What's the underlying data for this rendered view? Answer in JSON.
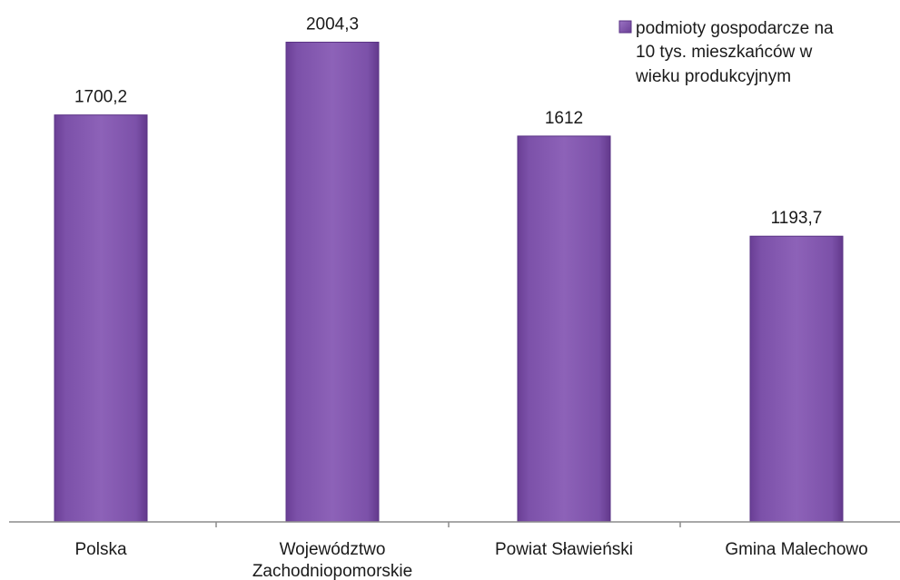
{
  "chart_data": {
    "type": "bar",
    "categories": [
      [
        "Polska"
      ],
      [
        "Województwo",
        "Zachodniopomorskie"
      ],
      [
        "Powiat Sławieński"
      ],
      [
        "Gmina Malechowo"
      ]
    ],
    "series": [
      {
        "name": "podmioty gospodarcze na 10 tys. mieszkańców w wieku produkcyjnym",
        "values": [
          1700.2,
          2004.3,
          1612,
          1193.7
        ],
        "value_labels": [
          "1700,2",
          "2004,3",
          "1612",
          "1193,7"
        ],
        "color": "#8a5fb4"
      }
    ],
    "legend": {
      "position": "top-right",
      "lines": [
        "podmioty gospodarcze na",
        "10 tys. mieszkańców w",
        "wieku produkcyjnym"
      ]
    },
    "ylim": [
      0,
      2400
    ],
    "grid": false,
    "title": "",
    "xlabel": "",
    "ylabel": ""
  }
}
